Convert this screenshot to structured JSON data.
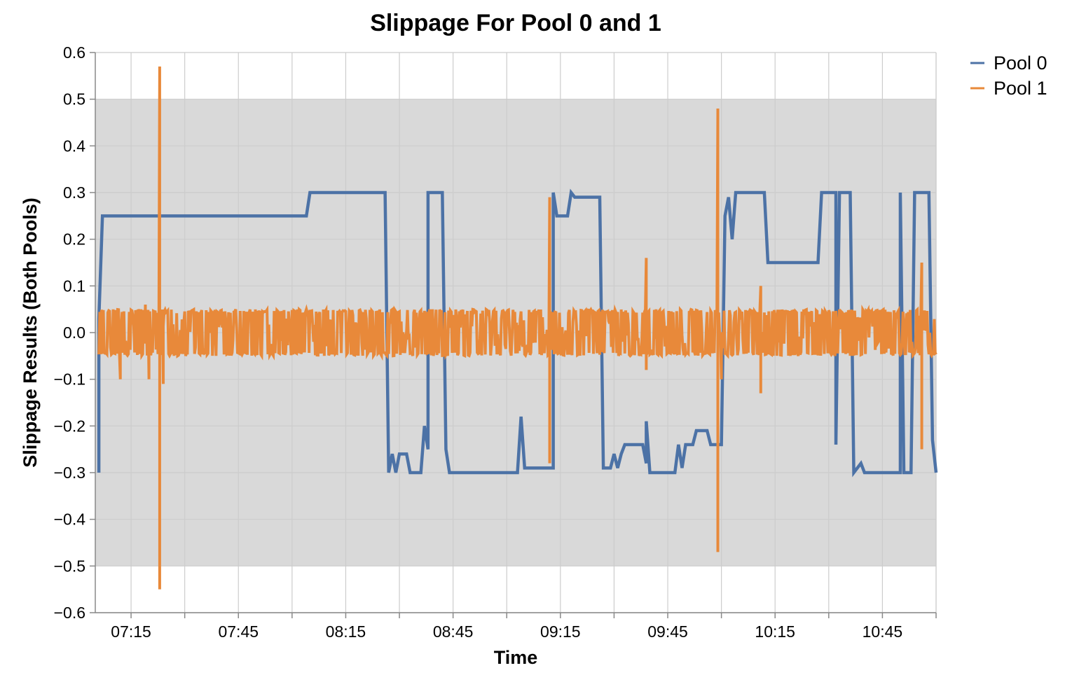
{
  "colors": {
    "pool0": "#4c72a6",
    "pool1": "#e8893a",
    "band": "#d9d9d9",
    "grid": "#cccccc",
    "axis": "#888888"
  },
  "chart_data": {
    "type": "line",
    "title": "Slippage For Pool 0 and 1",
    "xlabel": "Time",
    "ylabel": "Slippage Results (Both Pools)",
    "x_domain": [
      "07:05",
      "11:00"
    ],
    "xlim": [
      "07:05",
      "11:00"
    ],
    "ylim": [
      -0.6,
      0.6
    ],
    "y_ticks": [
      0.6,
      0.5,
      0.4,
      0.3,
      0.2,
      0.1,
      0.0,
      -0.1,
      -0.2,
      -0.3,
      -0.4,
      -0.5,
      -0.6
    ],
    "y_tick_labels": [
      "0.6",
      "0.5",
      "0.4",
      "0.3",
      "0.2",
      "0.1",
      "0.0",
      "−0.1",
      "−0.2",
      "−0.3",
      "−0.4",
      "−0.5",
      "−0.6"
    ],
    "x_ticks": [
      "07:15",
      "07:45",
      "08:15",
      "08:45",
      "09:15",
      "09:45",
      "10:15",
      "10:45"
    ],
    "band": {
      "y_from": -0.5,
      "y_to": 0.5
    },
    "grid": true,
    "legend_position": "top-right",
    "series": [
      {
        "name": "Pool 0",
        "points": [
          [
            "07:06",
            -0.3
          ],
          [
            "07:06",
            0.03
          ],
          [
            "07:07",
            0.25
          ],
          [
            "08:04",
            0.25
          ],
          [
            "08:05",
            0.3
          ],
          [
            "08:26",
            0.3
          ],
          [
            "08:27",
            -0.3
          ],
          [
            "08:28",
            -0.26
          ],
          [
            "08:29",
            -0.3
          ],
          [
            "08:30",
            -0.26
          ],
          [
            "08:32",
            -0.26
          ],
          [
            "08:33",
            -0.3
          ],
          [
            "08:36",
            -0.3
          ],
          [
            "08:37",
            -0.2
          ],
          [
            "08:38",
            -0.25
          ],
          [
            "08:38",
            0.3
          ],
          [
            "08:42",
            0.3
          ],
          [
            "08:43",
            -0.25
          ],
          [
            "08:44",
            -0.3
          ],
          [
            "09:03",
            -0.3
          ],
          [
            "09:04",
            -0.18
          ],
          [
            "09:05",
            -0.29
          ],
          [
            "09:13",
            -0.29
          ],
          [
            "09:13",
            0.3
          ],
          [
            "09:14",
            0.25
          ],
          [
            "09:17",
            0.25
          ],
          [
            "09:18",
            0.3
          ],
          [
            "09:19",
            0.29
          ],
          [
            "09:26",
            0.29
          ],
          [
            "09:27",
            -0.29
          ],
          [
            "09:29",
            -0.29
          ],
          [
            "09:30",
            -0.26
          ],
          [
            "09:31",
            -0.29
          ],
          [
            "09:32",
            -0.26
          ],
          [
            "09:33",
            -0.24
          ],
          [
            "09:38",
            -0.24
          ],
          [
            "09:39",
            -0.28
          ],
          [
            "09:39",
            -0.19
          ],
          [
            "09:40",
            -0.3
          ],
          [
            "09:47",
            -0.3
          ],
          [
            "09:48",
            -0.24
          ],
          [
            "09:49",
            -0.29
          ],
          [
            "09:50",
            -0.24
          ],
          [
            "09:52",
            -0.24
          ],
          [
            "09:53",
            -0.21
          ],
          [
            "09:56",
            -0.21
          ],
          [
            "09:57",
            -0.24
          ],
          [
            "10:00",
            -0.24
          ],
          [
            "10:01",
            0.25
          ],
          [
            "10:02",
            0.29
          ],
          [
            "10:03",
            0.2
          ],
          [
            "10:04",
            0.3
          ],
          [
            "10:12",
            0.3
          ],
          [
            "10:13",
            0.15
          ],
          [
            "10:27",
            0.15
          ],
          [
            "10:28",
            0.3
          ],
          [
            "10:32",
            0.3
          ],
          [
            "10:32",
            -0.24
          ],
          [
            "10:33",
            0.3
          ],
          [
            "10:36",
            0.3
          ],
          [
            "10:37",
            -0.3
          ],
          [
            "10:39",
            -0.28
          ],
          [
            "10:40",
            -0.3
          ],
          [
            "10:50",
            -0.3
          ],
          [
            "10:50",
            0.3
          ],
          [
            "10:51",
            -0.3
          ],
          [
            "10:53",
            -0.3
          ],
          [
            "10:54",
            0.3
          ],
          [
            "10:58",
            0.3
          ],
          [
            "10:59",
            -0.23
          ],
          [
            "10:59",
            -0.23
          ],
          [
            "11:00",
            -0.3
          ]
        ]
      },
      {
        "name": "Pool 1",
        "noise": {
          "from": "07:06",
          "to": "11:00",
          "amplitude": 0.05
        },
        "spikes": [
          [
            "07:12",
            -0.1
          ],
          [
            "07:19",
            0.06
          ],
          [
            "07:20",
            -0.1
          ],
          [
            "07:23",
            0.57
          ],
          [
            "07:23",
            -0.55
          ],
          [
            "07:24",
            -0.11
          ],
          [
            "09:12",
            0.29
          ],
          [
            "09:12",
            -0.28
          ],
          [
            "09:39",
            0.16
          ],
          [
            "09:39",
            -0.08
          ],
          [
            "09:59",
            0.48
          ],
          [
            "09:59",
            -0.47
          ],
          [
            "10:00",
            -0.1
          ],
          [
            "10:11",
            0.1
          ],
          [
            "10:11",
            -0.13
          ],
          [
            "10:56",
            0.15
          ],
          [
            "10:56",
            -0.25
          ]
        ]
      }
    ]
  }
}
